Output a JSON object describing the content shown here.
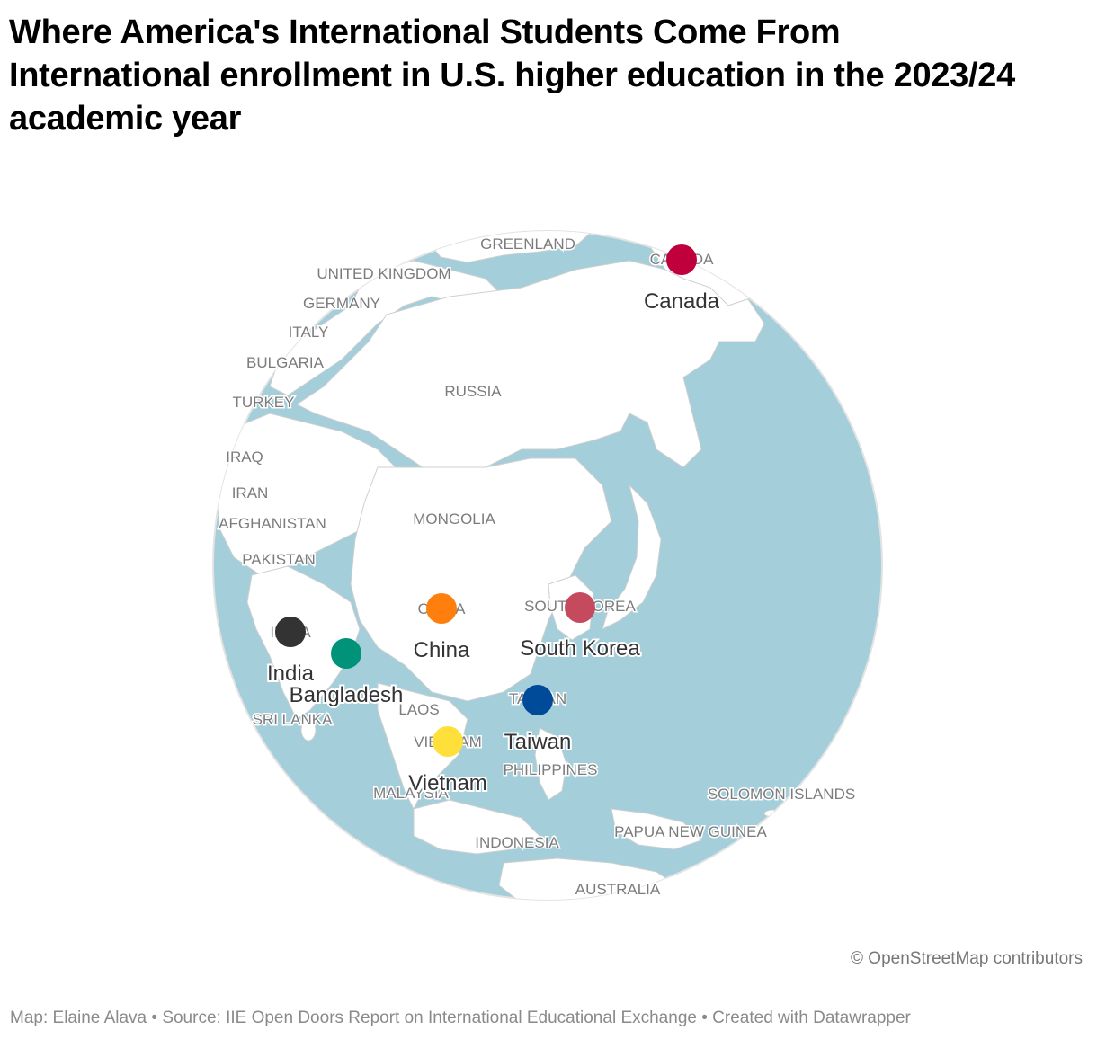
{
  "header": {
    "title": "Where America's International Students Come From",
    "subtitle": "International enrollment in U.S. higher education in the 2023/24 academic year"
  },
  "map": {
    "ocean_color": "#a3ceda",
    "land_color": "#ffffff",
    "border_color": "#cfcfcf",
    "base_labels": [
      "GREENLAND",
      "CANADA",
      "UNITED KINGDOM",
      "GERMANY",
      "ITALY",
      "BULGARIA",
      "TURKEY",
      "RUSSIA",
      "IRAQ",
      "IRAN",
      "AFGHANISTAN",
      "MONGOLIA",
      "PAKISTAN",
      "CHINA",
      "SOUTH KOREA",
      "INDIA",
      "LAOS",
      "TAIWAN",
      "SRI LANKA",
      "VIETNAM",
      "PHILIPPINES",
      "MALAYSIA",
      "SOLOMON ISLANDS",
      "PAPUA NEW GUINEA",
      "INDONESIA",
      "AUSTRALIA"
    ],
    "markers": [
      {
        "name": "Canada",
        "color": "#c0003c"
      },
      {
        "name": "South Korea",
        "color": "#c64a5e"
      },
      {
        "name": "China",
        "color": "#ff7f0e"
      },
      {
        "name": "India",
        "color": "#333333"
      },
      {
        "name": "Bangladesh",
        "color": "#00937a"
      },
      {
        "name": "Taiwan",
        "color": "#004a9a"
      },
      {
        "name": "Vietnam",
        "color": "#ffe03a"
      }
    ]
  },
  "attribution": "© OpenStreetMap contributors",
  "footer": {
    "credit": "Map: Elaine Alava",
    "source": "Source: IIE Open Doors Report on International Educational Exchange",
    "tool": "Created with Datawrapper",
    "separator": " • "
  }
}
